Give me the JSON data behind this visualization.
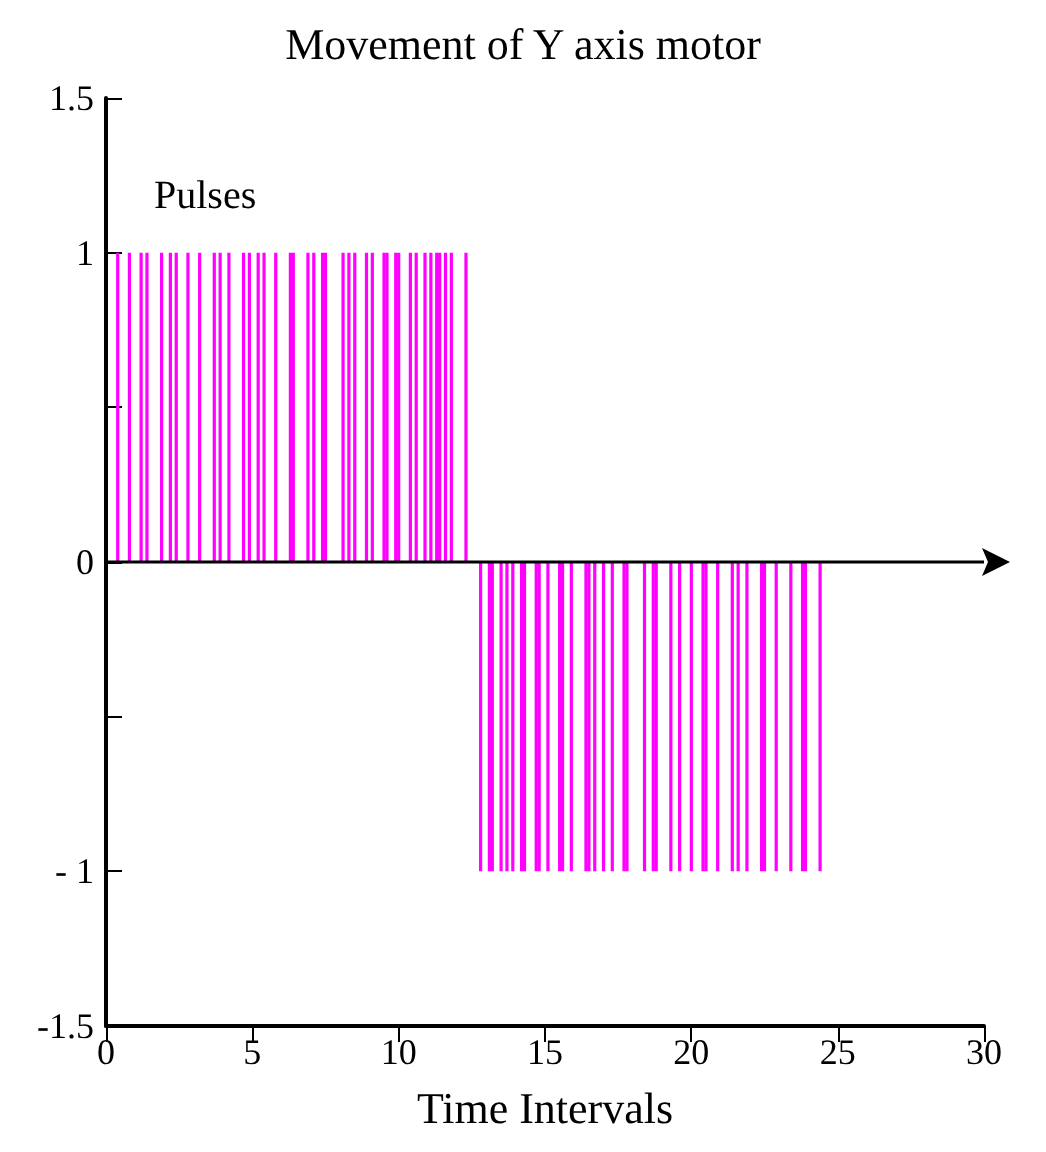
{
  "chart_data": {
    "type": "bar",
    "title": "Movement of Y axis motor",
    "xlabel": "Time Intervals",
    "annotations": [
      "Pulses"
    ],
    "x": [
      0.4,
      0.8,
      1.2,
      1.4,
      1.9,
      2.2,
      2.4,
      2.8,
      3.2,
      3.7,
      3.9,
      4.2,
      4.7,
      4.9,
      5.2,
      5.4,
      5.8,
      6.3,
      6.4,
      6.9,
      7.1,
      7.4,
      7.5,
      8.1,
      8.3,
      8.5,
      8.9,
      9.1,
      9.5,
      9.6,
      9.9,
      10.0,
      10.4,
      10.6,
      10.9,
      11.1,
      11.3,
      11.4,
      11.6,
      11.8,
      12.3,
      12.8,
      13.1,
      13.2,
      13.5,
      13.7,
      13.9,
      14.2,
      14.3,
      14.7,
      14.8,
      15.1,
      15.5,
      15.6,
      15.9,
      16.4,
      16.5,
      16.7,
      17.0,
      17.3,
      17.7,
      17.8,
      18.4,
      18.7,
      18.8,
      19.3,
      19.6,
      20.0,
      20.4,
      20.5,
      20.9,
      21.4,
      21.6,
      21.9,
      22.4,
      22.5,
      22.9,
      23.4,
      23.8,
      23.9,
      24.4
    ],
    "series": [
      {
        "color": "#ff00ff",
        "values": [
          1,
          1,
          1,
          1,
          1,
          1,
          1,
          1,
          1,
          1,
          1,
          1,
          1,
          1,
          1,
          1,
          1,
          1,
          1,
          1,
          1,
          1,
          1,
          1,
          1,
          1,
          1,
          1,
          1,
          1,
          1,
          1,
          1,
          1,
          1,
          1,
          1,
          1,
          1,
          1,
          1,
          -1,
          -1,
          -1,
          -1,
          -1,
          -1,
          -1,
          -1,
          -1,
          -1,
          -1,
          -1,
          -1,
          -1,
          -1,
          -1,
          -1,
          -1,
          -1,
          -1,
          -1,
          -1,
          -1,
          -1,
          -1,
          -1,
          -1,
          -1,
          -1,
          -1,
          -1,
          -1,
          -1,
          -1,
          -1,
          -1,
          -1,
          -1,
          -1,
          -1
        ]
      }
    ],
    "xlim": [
      0,
      30
    ],
    "xticks": [
      0,
      5,
      10,
      15,
      20,
      25,
      30
    ],
    "ylim": [
      -1.5,
      1.5
    ],
    "yticks": [
      {
        "value": -1.5,
        "label": "-1.5"
      },
      {
        "value": -1,
        "label": "- 1"
      },
      {
        "value": -0.5,
        "label": null
      },
      0,
      {
        "value": 0.5,
        "label": null
      },
      1,
      1.5
    ],
    "ref_lines": [
      {
        "axis": "y",
        "value": 0,
        "color": "#000000"
      }
    ],
    "grid": false
  }
}
